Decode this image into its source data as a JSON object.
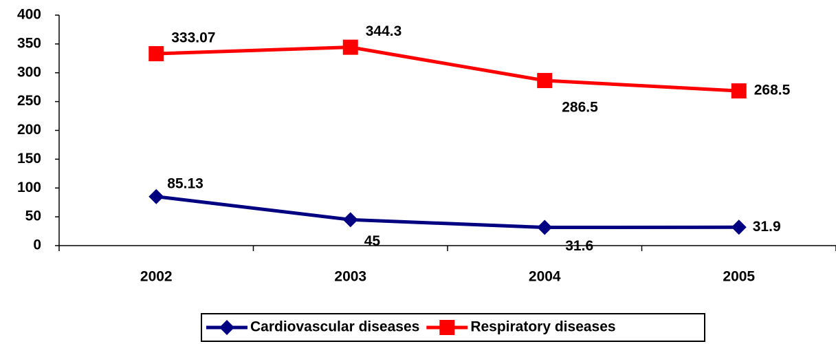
{
  "chart_data": {
    "type": "line",
    "categories": [
      "2002",
      "2003",
      "2004",
      "2005"
    ],
    "series": [
      {
        "name": "Cardiovascular diseases",
        "color": "#000080",
        "marker": "diamond",
        "values": [
          85.13,
          45,
          31.6,
          31.9
        ]
      },
      {
        "name": "Respiratory diseases",
        "color": "#ff0000",
        "marker": "square",
        "values": [
          333.07,
          344.3,
          286.5,
          268.5
        ]
      }
    ],
    "ylim": [
      0,
      400
    ],
    "yticks": [
      0,
      50,
      100,
      150,
      200,
      250,
      300,
      350,
      400
    ],
    "grid": false,
    "legend": "bottom"
  }
}
